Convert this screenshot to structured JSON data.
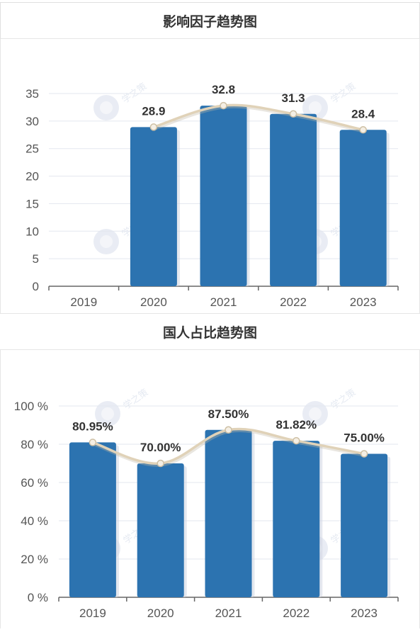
{
  "charts": {
    "chart1": {
      "title": "影响因子趋势图"
    },
    "chart2": {
      "title": "国人占比趋势图"
    }
  },
  "watermark_text": "学之策",
  "colors": {
    "bar": "#2c73b0",
    "line": "#e0d2b8",
    "grid": "#e3e7ef",
    "axis": "#666666",
    "tick": "#555555",
    "label": "#333333"
  },
  "chart_data": [
    {
      "type": "bar",
      "title": "影响因子趋势图",
      "categories": [
        "2019",
        "2020",
        "2021",
        "2022",
        "2023"
      ],
      "values": [
        null,
        28.9,
        32.8,
        31.3,
        28.4
      ],
      "value_labels": [
        "",
        "28.9",
        "32.8",
        "31.3",
        "28.4"
      ],
      "overlay": "smooth-line",
      "yticks": [
        "0",
        "5",
        "10",
        "15",
        "20",
        "25",
        "30",
        "35"
      ],
      "ylim": [
        0,
        35
      ],
      "grid": true
    },
    {
      "type": "bar",
      "title": "国人占比趋势图",
      "categories": [
        "2019",
        "2020",
        "2021",
        "2022",
        "2023"
      ],
      "values": [
        80.95,
        70.0,
        87.5,
        81.82,
        75.0
      ],
      "value_labels": [
        "80.95%",
        "70.00%",
        "87.50%",
        "81.82%",
        "75.00%"
      ],
      "overlay": "smooth-line",
      "yticks": [
        "0 %",
        "20 %",
        "40 %",
        "60 %",
        "80 %",
        "100 %"
      ],
      "ylim": [
        0,
        100
      ],
      "grid": true
    }
  ]
}
